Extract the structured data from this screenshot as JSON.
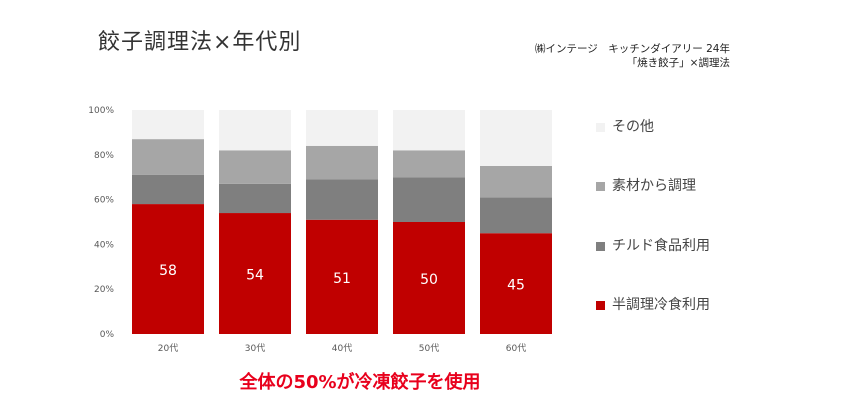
{
  "page": {
    "title": "餃子調理法×年代別",
    "source_line1": "㈱インテージ　キッチンダイアリー 24年",
    "source_line2": "「焼き餃子」×調理法",
    "callout": "全体の50%が冷凍餃子を使用"
  },
  "chart_data": {
    "type": "bar",
    "stacked": true,
    "percent_stacked": true,
    "title": "餃子調理法×年代別",
    "xlabel": "",
    "ylabel": "",
    "ylim": [
      0,
      100
    ],
    "y_ticks": [
      "0%",
      "20%",
      "40%",
      "60%",
      "80%",
      "100%"
    ],
    "grid": false,
    "legend_position": "right",
    "categories": [
      "20代",
      "30代",
      "40代",
      "50代",
      "60代"
    ],
    "series": [
      {
        "name": "半調理冷食利用",
        "color": "#c00000",
        "values": [
          58,
          54,
          51,
          50,
          45
        ],
        "show_labels": true
      },
      {
        "name": "チルド食品利用",
        "color": "#7f7f7f",
        "values": [
          13,
          13,
          18,
          20,
          16
        ],
        "show_labels": false
      },
      {
        "name": "素材から調理",
        "color": "#a6a6a6",
        "values": [
          16,
          15,
          15,
          12,
          14
        ],
        "show_labels": false
      },
      {
        "name": "その他",
        "color": "#f2f2f2",
        "values": [
          13,
          18,
          16,
          18,
          25
        ],
        "show_labels": false
      }
    ]
  }
}
